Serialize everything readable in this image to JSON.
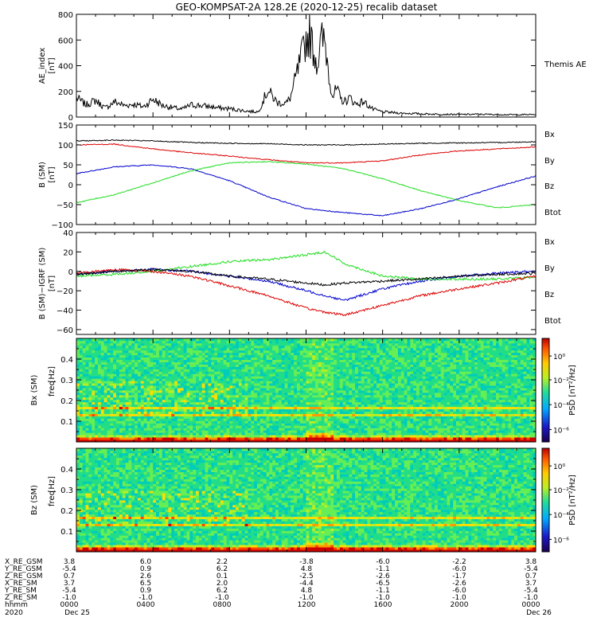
{
  "title": "GEO-KOMPSAT-2A 128.2E (2020-12-25) recalib dataset",
  "colors": {
    "bx": "#0000cc",
    "by": "#22dd22",
    "bz": "#dd0000",
    "btot": "#000000"
  },
  "chart_data": [
    {
      "type": "line",
      "panel": "ae",
      "ylabel": "AE_index",
      "yunit": "[nT]",
      "ylim": [
        0,
        800
      ],
      "yticks": [
        "0",
        "200",
        "400",
        "600",
        "800"
      ],
      "legend": [
        "Themis AE"
      ],
      "x_hours": [
        0,
        0.5,
        1,
        1.5,
        2,
        2.5,
        3,
        3.5,
        4,
        4.5,
        5,
        5.5,
        6,
        6.5,
        7,
        7.5,
        8,
        8.5,
        9,
        9.5,
        10,
        10.5,
        11,
        11.2,
        11.6,
        12,
        12.2,
        12.4,
        12.6,
        12.8,
        13,
        13.2,
        13.4,
        13.6,
        13.8,
        14,
        14.3,
        14.6,
        15,
        15.5,
        16,
        16.5,
        17,
        17.5,
        18,
        19,
        20,
        21,
        22,
        23,
        24
      ],
      "series": [
        {
          "name": "AE",
          "values": [
            150,
            95,
            130,
            70,
            120,
            90,
            100,
            80,
            140,
            90,
            75,
            60,
            95,
            90,
            80,
            70,
            65,
            55,
            45,
            40,
            210,
            110,
            110,
            160,
            380,
            600,
            640,
            510,
            420,
            600,
            580,
            330,
            160,
            220,
            140,
            120,
            150,
            100,
            120,
            60,
            40,
            35,
            30,
            28,
            25,
            22,
            20,
            22,
            20,
            18,
            20
          ]
        }
      ]
    },
    {
      "type": "line",
      "panel": "b",
      "ylabel": "B (SM)",
      "yunit": "[nT]",
      "ylim": [
        -100,
        150
      ],
      "yticks": [
        "−100",
        "−50",
        "0",
        "50",
        "100",
        "150"
      ],
      "legend": [
        "Bx",
        "By",
        "Bz",
        "Btot"
      ],
      "x_hours": [
        0,
        2,
        4,
        6,
        8,
        10,
        12,
        14,
        16,
        18,
        20,
        22,
        24
      ],
      "series": [
        {
          "name": "Bx",
          "values": [
            28,
            45,
            50,
            40,
            10,
            -30,
            -60,
            -70,
            -78,
            -60,
            -35,
            -5,
            22
          ]
        },
        {
          "name": "By",
          "values": [
            -45,
            -25,
            5,
            35,
            55,
            58,
            52,
            40,
            15,
            -15,
            -40,
            -58,
            -50
          ]
        },
        {
          "name": "Bz",
          "values": [
            100,
            102,
            90,
            80,
            72,
            63,
            55,
            55,
            60,
            75,
            85,
            90,
            95
          ]
        },
        {
          "name": "Btot",
          "values": [
            110,
            112,
            110,
            106,
            104,
            103,
            100,
            100,
            102,
            104,
            105,
            106,
            108
          ]
        }
      ]
    },
    {
      "type": "line",
      "panel": "dbb",
      "ylabel": "B (SM)−IGRF (SM)",
      "yunit": "[nT]",
      "ylim": [
        -65,
        40
      ],
      "yticks": [
        "−60",
        "−40",
        "−20",
        "0",
        "20",
        "40"
      ],
      "legend": [
        "Bx",
        "By",
        "Bz",
        "Btot"
      ],
      "x_hours": [
        0,
        2,
        4,
        6,
        8,
        10,
        12,
        13,
        14,
        16,
        18,
        20,
        22,
        24
      ],
      "series": [
        {
          "name": "Bx",
          "values": [
            -3,
            0,
            2,
            0,
            -5,
            -10,
            -20,
            -25,
            -30,
            -18,
            -10,
            -5,
            -2,
            0
          ]
        },
        {
          "name": "By",
          "values": [
            -5,
            -3,
            0,
            5,
            10,
            12,
            17,
            20,
            8,
            -5,
            -8,
            -8,
            -8,
            -6
          ]
        },
        {
          "name": "Bz",
          "values": [
            -2,
            2,
            0,
            -5,
            -15,
            -25,
            -38,
            -42,
            -45,
            -35,
            -25,
            -18,
            -12,
            -5
          ]
        },
        {
          "name": "Btot",
          "values": [
            -3,
            0,
            2,
            0,
            -5,
            -8,
            -12,
            -14,
            -12,
            -10,
            -8,
            -5,
            -3,
            -2
          ]
        }
      ]
    },
    {
      "type": "heatmap",
      "panel": "bx-spec",
      "ylabel": "Bx (SM)",
      "ylabel2": "freq",
      "yunit": "[Hz]",
      "ylim": [
        0,
        0.5
      ],
      "yticks": [
        "0.1",
        "0.2",
        "0.3",
        "0.4"
      ],
      "colorbar_label": "PSD [nT²/Hz]",
      "colorbar_ticks": [
        "10⁰",
        "10⁻²",
        "10⁻⁴",
        "10⁻⁶"
      ],
      "line_freqs_hz": [
        0.167,
        0.13
      ],
      "enhanced_hour_ranges": [
        [
          12,
          13.5
        ]
      ]
    },
    {
      "type": "heatmap",
      "panel": "bz-spec",
      "ylabel": "Bz (SM)",
      "ylabel2": "freq",
      "yunit": "[Hz]",
      "ylim": [
        0,
        0.5
      ],
      "yticks": [
        "0.1",
        "0.2",
        "0.3",
        "0.4"
      ],
      "colorbar_label": "PSD [nT²/Hz]",
      "colorbar_ticks": [
        "10⁰",
        "10⁻²",
        "10⁻⁴",
        "10⁻⁶"
      ],
      "line_freqs_hz": [
        0.167,
        0.13
      ],
      "enhanced_hour_ranges": [
        [
          12,
          13.5
        ]
      ]
    }
  ],
  "ephemeris": {
    "labels": [
      "X_RE_GSM",
      "Y_RE_GSM",
      "Z_RE_GSM",
      "X_RE_SM",
      "Y_RE_SM",
      "Z_RE_SM",
      "hhmm",
      "2020"
    ],
    "columns": [
      [
        "3.8",
        "-5.4",
        "0.7",
        "3.7",
        "-5.4",
        "-1.0",
        "0000",
        "Dec 25"
      ],
      [
        "6.0",
        "0.9",
        "2.6",
        "6.5",
        "0.9",
        "-1.0",
        "0400",
        ""
      ],
      [
        "2.2",
        "6.2",
        "0.1",
        "2.0",
        "6.2",
        "-1.0",
        "0800",
        ""
      ],
      [
        "-3.8",
        "4.8",
        "-2.5",
        "-4.4",
        "4.8",
        "-1.0",
        "1200",
        ""
      ],
      [
        "-6.0",
        "-1.1",
        "-2.6",
        "-6.5",
        "-1.1",
        "-1.0",
        "1600",
        ""
      ],
      [
        "-2.2",
        "-6.0",
        "-1.7",
        "-2.6",
        "-6.0",
        "-1.0",
        "2000",
        ""
      ],
      [
        "3.8",
        "-5.4",
        "0.7",
        "3.7",
        "-5.4",
        "-1.0",
        "0000",
        "Dec 26"
      ]
    ]
  }
}
